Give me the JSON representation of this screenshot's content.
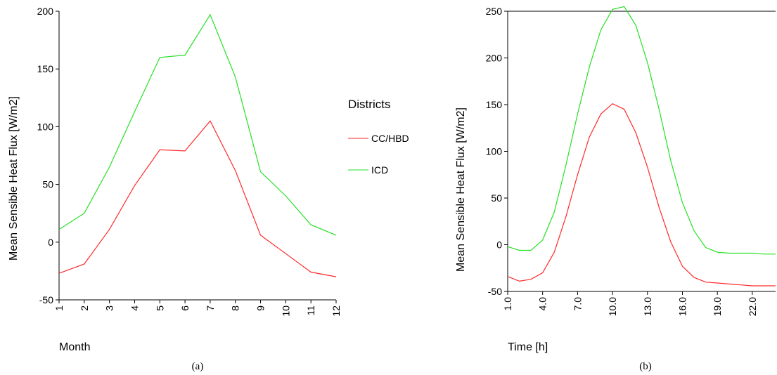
{
  "colors": {
    "cc_hbd": "#ff2a2a",
    "icd": "#26e026"
  },
  "legend": {
    "title": "Districts",
    "items": [
      {
        "label": "CC/HBD",
        "color": "#ff2a2a"
      },
      {
        "label": "ICD",
        "color": "#26e026"
      }
    ]
  },
  "chart_data": [
    {
      "type": "line",
      "caption": "(a)",
      "xlabel": "Month",
      "ylabel": "Mean Sensible Heat Flux [W/m2]",
      "x": [
        1,
        2,
        3,
        4,
        5,
        6,
        7,
        8,
        9,
        10,
        11,
        12
      ],
      "x_tick_labels": [
        "1",
        "2",
        "3",
        "4",
        "5",
        "6",
        "7",
        "8",
        "9",
        "10",
        "11",
        "12"
      ],
      "xlim": [
        1,
        12
      ],
      "ylim": [
        -50,
        200
      ],
      "y_ticks": [
        -50,
        0,
        50,
        100,
        150,
        200
      ],
      "series": [
        {
          "name": "CC/HBD",
          "color": "#ff2a2a",
          "values": [
            -27,
            -19,
            11,
            49,
            80,
            79,
            105,
            62,
            6,
            -10,
            -26,
            -30
          ]
        },
        {
          "name": "ICD",
          "color": "#26e026",
          "values": [
            11,
            25,
            65,
            113,
            160,
            162,
            197,
            143,
            61,
            40,
            15,
            6
          ]
        }
      ]
    },
    {
      "type": "line",
      "caption": "(b)",
      "xlabel": "Time [h]",
      "ylabel": "Mean Sensible Heat Flux [W/m2]",
      "x": [
        1,
        2,
        3,
        4,
        5,
        6,
        7,
        8,
        9,
        10,
        11,
        12,
        13,
        14,
        15,
        16,
        17,
        18,
        19,
        20,
        21,
        22,
        23,
        24
      ],
      "x_tick_labels": [
        "1.0",
        "4.0",
        "7.0",
        "10.0",
        "13.0",
        "16.0",
        "19.0",
        "22.0"
      ],
      "x_tick_values": [
        1,
        4,
        7,
        10,
        13,
        16,
        19,
        22
      ],
      "xlim": [
        1,
        24
      ],
      "ylim": [
        -50,
        250
      ],
      "y_ticks": [
        -50,
        0,
        50,
        100,
        150,
        200,
        250
      ],
      "series": [
        {
          "name": "CC/HBD",
          "color": "#ff2a2a",
          "values": [
            -34,
            -39,
            -37,
            -30,
            -8,
            30,
            75,
            115,
            140,
            151,
            145,
            120,
            83,
            40,
            3,
            -23,
            -35,
            -40,
            -41,
            -42,
            -43,
            -44,
            -44,
            -44
          ]
        },
        {
          "name": "ICD",
          "color": "#26e026",
          "values": [
            -2,
            -6,
            -6,
            5,
            35,
            85,
            140,
            190,
            230,
            252,
            255,
            235,
            195,
            145,
            90,
            45,
            15,
            -3,
            -8,
            -9,
            -9,
            -9,
            -10,
            -10
          ]
        }
      ]
    }
  ]
}
